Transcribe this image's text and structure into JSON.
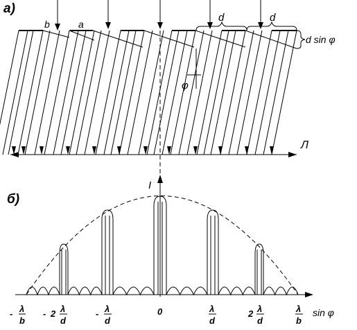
{
  "part_a": {
    "label": "а)",
    "slit_label": "b",
    "opaque_label": "a",
    "period_label_1": "d",
    "period_label_2": "d",
    "path_diff_label": "d sin φ",
    "angle_label": "φ",
    "lens_label": "Л"
  },
  "part_b": {
    "label": "б)",
    "y_axis_label": "I",
    "x_axis_label": "sin φ",
    "ticks": {
      "minus_lb": {
        "sign": "-",
        "coef": "",
        "num": "λ",
        "den": "b"
      },
      "minus_2ld": {
        "sign": "-",
        "coef": "2",
        "num": "λ",
        "den": "d"
      },
      "minus_ld": {
        "sign": "-",
        "coef": "",
        "num": "λ",
        "den": "d"
      },
      "zero": {
        "text": "0"
      },
      "plus_ld": {
        "sign": "",
        "coef": "",
        "num": "λ",
        "den": "d"
      },
      "plus_2ld": {
        "sign": "",
        "coef": "2",
        "num": "λ",
        "den": "d"
      },
      "plus_lb": {
        "sign": "",
        "coef": "",
        "num": "λ",
        "den": "b"
      }
    }
  }
}
